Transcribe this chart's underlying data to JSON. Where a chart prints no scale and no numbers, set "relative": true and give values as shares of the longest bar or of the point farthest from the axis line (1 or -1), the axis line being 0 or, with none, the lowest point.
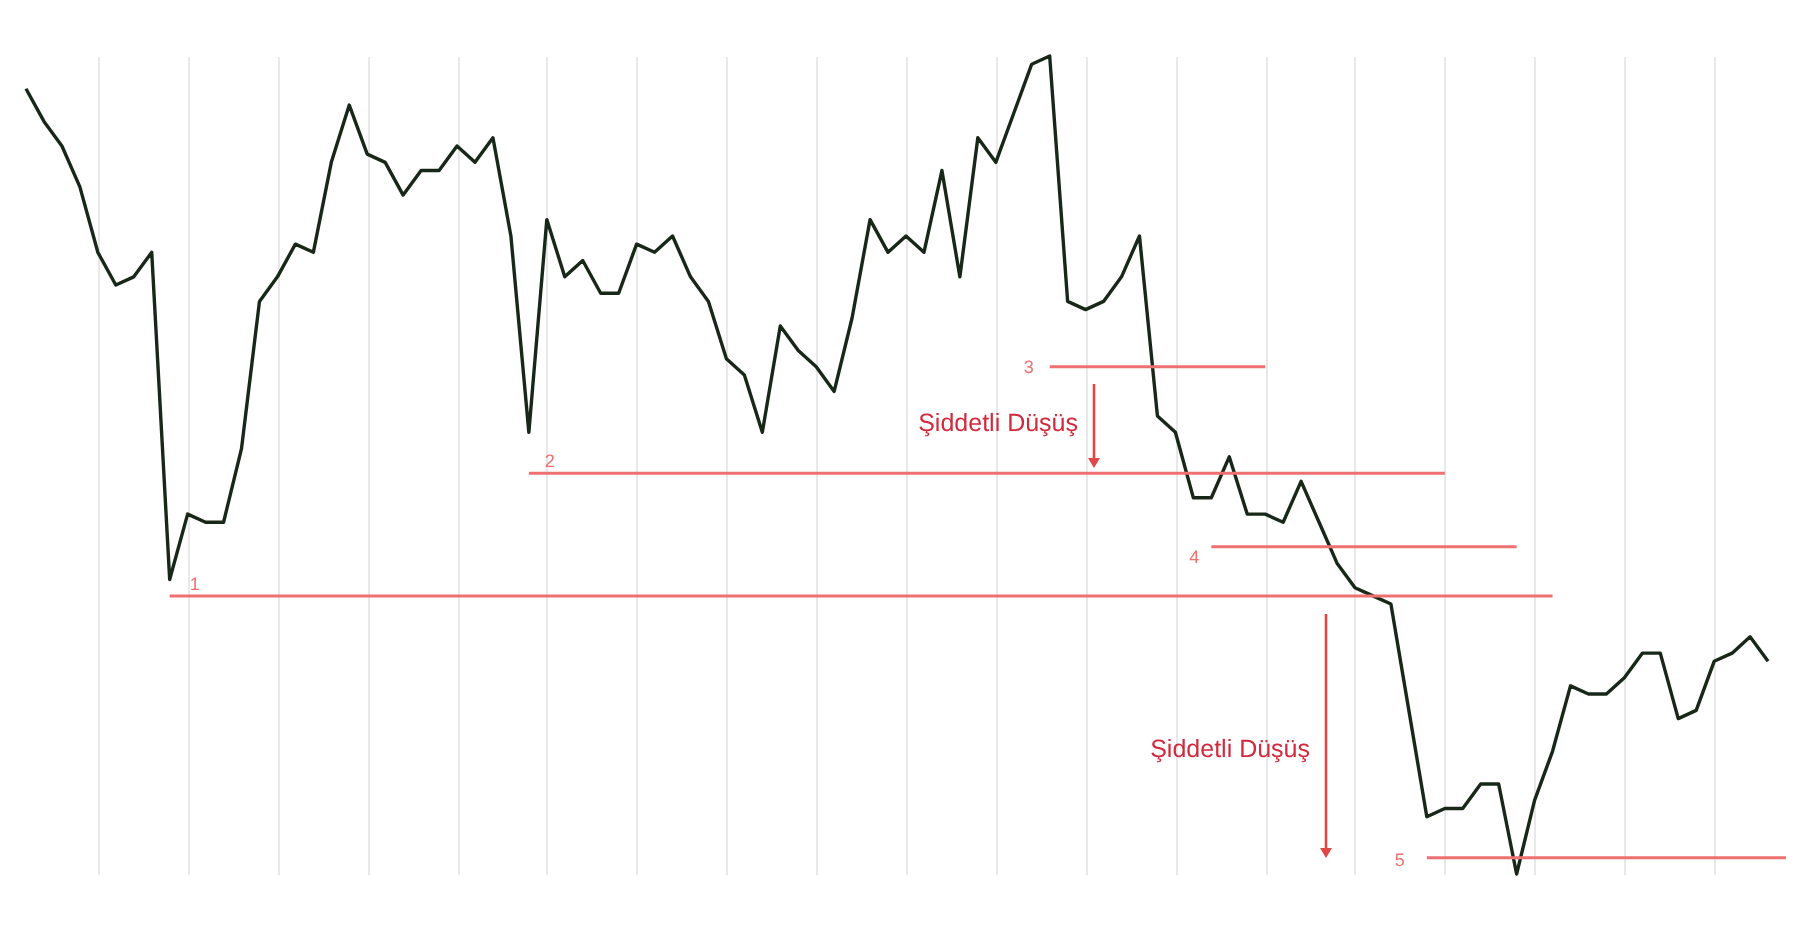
{
  "chart_data": {
    "type": "line",
    "relative": true,
    "grid": "x",
    "tick_labels": false,
    "categories": [
      null,
      null,
      null,
      null,
      null,
      null,
      null,
      null,
      null,
      null,
      null,
      null,
      null,
      null,
      null,
      null,
      null,
      null,
      null,
      null,
      null,
      null,
      null,
      null,
      null,
      null,
      null,
      null,
      null,
      null,
      null,
      null,
      null,
      null,
      null,
      null,
      null,
      null,
      null,
      null,
      null,
      null,
      null,
      null,
      null,
      null,
      null,
      null,
      null,
      null,
      null,
      null,
      null,
      null,
      null,
      null,
      null,
      null,
      null,
      null,
      null,
      null,
      null,
      null,
      null,
      null,
      null,
      null,
      null,
      null,
      null,
      null,
      null,
      null,
      null,
      null,
      null,
      null,
      null,
      null,
      null,
      null,
      null,
      null,
      null,
      null,
      null,
      null,
      null,
      null,
      null,
      null,
      null,
      null,
      null,
      null,
      null,
      null,
      null
    ],
    "series": [
      {
        "color": "#182818",
        "values": [
          0.96,
          0.92,
          0.89,
          0.84,
          0.76,
          0.72,
          0.73,
          0.76,
          0.36,
          0.44,
          0.43,
          0.43,
          0.52,
          0.7,
          0.73,
          0.77,
          0.76,
          0.87,
          0.94,
          0.88,
          0.87,
          0.83,
          0.86,
          0.86,
          0.89,
          0.87,
          0.9,
          0.78,
          0.54,
          0.8,
          0.73,
          0.75,
          0.71,
          0.71,
          0.77,
          0.76,
          0.78,
          0.73,
          0.7,
          0.63,
          0.61,
          0.54,
          0.67,
          0.64,
          0.62,
          0.59,
          0.68,
          0.8,
          0.76,
          0.78,
          0.76,
          0.86,
          0.73,
          0.9,
          0.87,
          0.93,
          0.99,
          1,
          0.7,
          0.69,
          0.7,
          0.73,
          0.78,
          0.56,
          0.54,
          0.46,
          0.46,
          0.51,
          0.44,
          0.44,
          0.43,
          0.48,
          0.43,
          0.38,
          0.35,
          0.34,
          0.33,
          0.2,
          0.07,
          0.08,
          0.08,
          0.11,
          0.11,
          0,
          0.09,
          0.15,
          0.23,
          0.22,
          0.22,
          0.24,
          0.27,
          0.27,
          0.19,
          0.2,
          0.26,
          0.27,
          0.29,
          0.26,
          null
        ]
      },
      {
        "name": "1",
        "color": "#ee7070",
        "values": [
          null,
          null,
          null,
          null,
          null,
          null,
          null,
          null,
          0.34,
          0.34,
          0.34,
          0.34,
          0.34,
          0.34,
          0.34,
          0.34,
          0.34,
          0.34,
          0.34,
          0.34,
          0.34,
          0.34,
          0.34,
          0.34,
          0.34,
          0.34,
          0.34,
          0.34,
          0.34,
          0.34,
          0.34,
          0.34,
          0.34,
          0.34,
          0.34,
          0.34,
          0.34,
          0.34,
          0.34,
          0.34,
          0.34,
          0.34,
          0.34,
          0.34,
          0.34,
          0.34,
          0.34,
          0.34,
          0.34,
          0.34,
          0.34,
          0.34,
          0.34,
          0.34,
          0.34,
          0.34,
          0.34,
          0.34,
          0.34,
          0.34,
          0.34,
          0.34,
          0.34,
          0.34,
          0.34,
          0.34,
          0.34,
          0.34,
          0.34,
          0.34,
          0.34,
          0.34,
          0.34,
          0.34,
          0.34,
          0.34,
          0.34,
          0.34,
          0.34,
          0.34,
          0.34,
          0.34,
          0.34,
          0.34,
          0.34,
          0.34,
          null,
          null,
          null,
          null,
          null,
          null,
          null,
          null,
          null,
          null,
          null,
          null,
          null
        ]
      },
      {
        "name": "2",
        "color": "#ee7070",
        "values": [
          null,
          null,
          null,
          null,
          null,
          null,
          null,
          null,
          null,
          null,
          null,
          null,
          null,
          null,
          null,
          null,
          null,
          null,
          null,
          null,
          null,
          null,
          null,
          null,
          null,
          null,
          null,
          null,
          0.49,
          0.49,
          0.49,
          0.49,
          0.49,
          0.49,
          0.49,
          0.49,
          0.49,
          0.49,
          0.49,
          0.49,
          0.49,
          0.49,
          0.49,
          0.49,
          0.49,
          0.49,
          0.49,
          0.49,
          0.49,
          0.49,
          0.49,
          0.49,
          0.49,
          0.49,
          0.49,
          0.49,
          0.49,
          0.49,
          0.49,
          0.49,
          0.49,
          0.49,
          0.49,
          0.49,
          0.49,
          0.49,
          0.49,
          0.49,
          0.49,
          0.49,
          0.49,
          0.49,
          0.49,
          0.49,
          0.49,
          0.49,
          0.49,
          0.49,
          0.49,
          0.49,
          null,
          null,
          null,
          null,
          null,
          null,
          null,
          null,
          null,
          null,
          null,
          null,
          null,
          null,
          null,
          null,
          null,
          null,
          null
        ]
      },
      {
        "name": "3",
        "color": "#ee7070",
        "values": [
          null,
          null,
          null,
          null,
          null,
          null,
          null,
          null,
          null,
          null,
          null,
          null,
          null,
          null,
          null,
          null,
          null,
          null,
          null,
          null,
          null,
          null,
          null,
          null,
          null,
          null,
          null,
          null,
          null,
          null,
          null,
          null,
          null,
          null,
          null,
          null,
          null,
          null,
          null,
          null,
          null,
          null,
          null,
          null,
          null,
          null,
          null,
          null,
          null,
          null,
          null,
          null,
          null,
          null,
          null,
          null,
          null,
          0.62,
          0.62,
          0.62,
          0.62,
          0.62,
          0.62,
          0.62,
          0.62,
          0.62,
          0.62,
          0.62,
          0.62,
          0.62,
          null,
          null,
          null,
          null,
          null,
          null,
          null,
          null,
          null,
          null,
          null,
          null,
          null,
          null,
          null,
          null,
          null,
          null,
          null,
          null,
          null,
          null,
          null,
          null,
          null,
          null,
          null,
          null,
          null
        ]
      },
      {
        "name": "4",
        "color": "#ee7070",
        "values": [
          null,
          null,
          null,
          null,
          null,
          null,
          null,
          null,
          null,
          null,
          null,
          null,
          null,
          null,
          null,
          null,
          null,
          null,
          null,
          null,
          null,
          null,
          null,
          null,
          null,
          null,
          null,
          null,
          null,
          null,
          null,
          null,
          null,
          null,
          null,
          null,
          null,
          null,
          null,
          null,
          null,
          null,
          null,
          null,
          null,
          null,
          null,
          null,
          null,
          null,
          null,
          null,
          null,
          null,
          null,
          null,
          null,
          null,
          null,
          null,
          null,
          null,
          null,
          null,
          null,
          null,
          0.4,
          0.4,
          0.4,
          0.4,
          0.4,
          0.4,
          0.4,
          0.4,
          0.4,
          0.4,
          0.4,
          0.4,
          0.4,
          0.4,
          0.4,
          0.4,
          0.4,
          0.4,
          null,
          null,
          null,
          null,
          null,
          null,
          null,
          null,
          null,
          null,
          null,
          null,
          null,
          null,
          null
        ]
      },
      {
        "name": "5",
        "color": "#ee7070",
        "values": [
          null,
          null,
          null,
          null,
          null,
          null,
          null,
          null,
          null,
          null,
          null,
          null,
          null,
          null,
          null,
          null,
          null,
          null,
          null,
          null,
          null,
          null,
          null,
          null,
          null,
          null,
          null,
          null,
          null,
          null,
          null,
          null,
          null,
          null,
          null,
          null,
          null,
          null,
          null,
          null,
          null,
          null,
          null,
          null,
          null,
          null,
          null,
          null,
          null,
          null,
          null,
          null,
          null,
          null,
          null,
          null,
          null,
          null,
          null,
          null,
          null,
          null,
          null,
          null,
          null,
          null,
          null,
          null,
          null,
          null,
          null,
          null,
          null,
          null,
          null,
          null,
          null,
          null,
          0.02,
          0.02,
          0.02,
          0.02,
          0.02,
          0.02,
          0.02,
          0.02,
          0.02,
          0.02,
          0.02,
          0.02,
          0.02,
          0.02,
          0.02,
          0.02,
          0.02,
          0.02,
          0.02,
          0.02,
          0.02
        ]
      }
    ],
    "annotations": [
      "Şiddetli Düşüş",
      "Şiddetli Düşüş"
    ]
  }
}
